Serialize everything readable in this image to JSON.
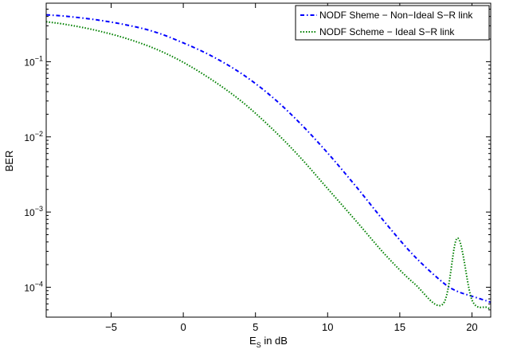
{
  "chart_data": {
    "type": "line",
    "title": "",
    "xlabel": {
      "main": "E",
      "sub": "S",
      "rest": " in dB"
    },
    "ylabel": "BER",
    "xlim": [
      -9.5,
      21.3
    ],
    "ylim": [
      4e-05,
      0.6
    ],
    "y_scale": "log",
    "grid": false,
    "legend_position": "top-right",
    "x_ticks": [
      -5,
      0,
      5,
      10,
      15,
      20
    ],
    "x_tick_labels": [
      "−5",
      "0",
      "5",
      "10",
      "15",
      "20"
    ],
    "y_ticks": [
      {
        "value": 0.1,
        "base": "10",
        "exp": "−1"
      },
      {
        "value": 0.01,
        "base": "10",
        "exp": "−2"
      },
      {
        "value": 0.001,
        "base": "10",
        "exp": "−3"
      },
      {
        "value": 0.0001,
        "base": "10",
        "exp": "−4"
      }
    ],
    "x": [
      -9.5,
      -8,
      -6,
      -4,
      -2,
      0,
      2,
      4,
      6,
      8,
      10,
      12,
      14,
      16,
      18,
      19,
      20,
      21,
      21.3
    ],
    "series": [
      {
        "name": "NODF Sheme − Non−Ideal S−R link",
        "color": "#0000ff",
        "style": "dash-dot",
        "values": [
          0.42,
          0.4,
          0.36,
          0.31,
          0.25,
          0.178,
          0.118,
          0.07,
          0.036,
          0.0158,
          0.0061,
          0.00215,
          0.00072,
          0.00026,
          0.000115,
          8.8e-05,
          7.6e-05,
          6.6e-05,
          6.3e-05
        ]
      },
      {
        "name": "NODF Scheme − Ideal S−R link",
        "color": "#008000",
        "style": "dotted",
        "values": [
          0.34,
          0.31,
          0.26,
          0.205,
          0.15,
          0.098,
          0.057,
          0.03,
          0.0137,
          0.0056,
          0.00205,
          0.00075,
          0.00027,
          0.000112,
          6e-05,
          0.00045,
          6.8e-05,
          5.4e-05,
          5.2e-05
        ]
      }
    ]
  }
}
